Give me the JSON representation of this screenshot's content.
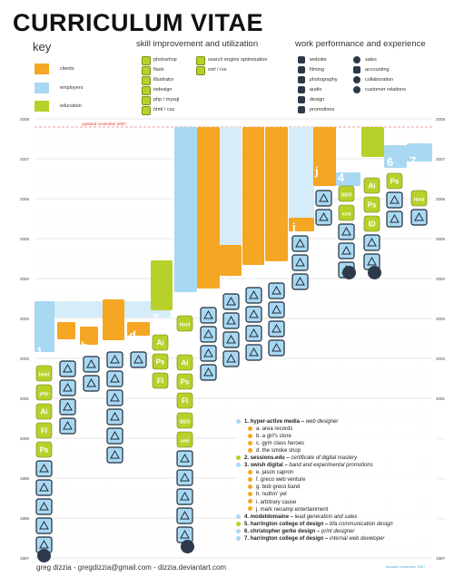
{
  "header": {
    "title": "CURRICULUM VITAE",
    "key_title": "key",
    "skills_title": "skill improvement and utilization",
    "work_title": "work performance and experience"
  },
  "key": [
    {
      "label": "clients",
      "color": "#f5a623"
    },
    {
      "label": "employers",
      "color": "#a9d8f2"
    },
    {
      "label": "education",
      "color": "#b8d02a"
    }
  ],
  "skills": [
    "photoshop",
    "flash",
    "illustrator",
    "indesign",
    "php / mysql",
    "html / css",
    "search engine optimization",
    "xml / rss"
  ],
  "work": [
    "website",
    "filming",
    "photography",
    "audio",
    "design",
    "promotions",
    "sales",
    "accounting",
    "collaboration",
    "customer relations"
  ],
  "chart_data": {
    "type": "timeline",
    "y_ticks": [
      "2008",
      "2007",
      "2006",
      "2005",
      "2004",
      "2003",
      "2002",
      "2001",
      "2000",
      "1999",
      "1998",
      "1997"
    ],
    "updated_label": "updated november 2007",
    "column_labels": [
      "1",
      "a",
      "b",
      "c",
      "d",
      "2",
      "3",
      "e",
      "f",
      "g",
      "h",
      "i",
      "j",
      "4",
      "5",
      "6",
      "7"
    ],
    "badge_labels": [
      "html",
      "php",
      "Ai",
      "Fl",
      "Ps",
      "Ai",
      "Ps",
      "Fl",
      "html",
      "Ai",
      "Ps",
      "Fl",
      "SEO",
      "xml",
      "SEO",
      "xml",
      "Ai",
      "Ps",
      "ID",
      "Ps",
      "html"
    ]
  },
  "legend": {
    "items": [
      {
        "num": "1.",
        "name": "hyper-active media",
        "desc": "web designer",
        "color": "#a9d8f2"
      },
      {
        "num": "a.",
        "name": "area records",
        "color": "#f5a623"
      },
      {
        "num": "b.",
        "name": "a girl's store",
        "color": "#f5a623"
      },
      {
        "num": "c.",
        "name": "gym class heroes",
        "color": "#f5a623"
      },
      {
        "num": "d.",
        "name": "the smoke shop",
        "color": "#f5a623"
      },
      {
        "num": "2.",
        "name": "sessions.edu",
        "desc": "certificate of digital mastery",
        "color": "#b8d02a"
      },
      {
        "num": "3.",
        "name": "swish digital",
        "desc": "band and experimental promotions",
        "color": "#a9d8f2"
      },
      {
        "num": "e.",
        "name": "jason capron",
        "color": "#f5a623"
      },
      {
        "num": "f.",
        "name": "greco web venture",
        "color": "#f5a623"
      },
      {
        "num": "g.",
        "name": "bob greco band",
        "color": "#f5a623"
      },
      {
        "num": "h.",
        "name": "nuthin' yet",
        "color": "#f5a623"
      },
      {
        "num": "i.",
        "name": "arbitrary cause",
        "color": "#f5a623"
      },
      {
        "num": "j.",
        "name": "mark necamp entertainment",
        "color": "#f5a623"
      },
      {
        "num": "4.",
        "name": "modeldomaine",
        "desc": "lead generation and sales",
        "color": "#a9d8f2"
      },
      {
        "num": "5.",
        "name": "harrington college of design",
        "desc": "bfa communication design",
        "color": "#b8d02a"
      },
      {
        "num": "6.",
        "name": "christopher gerke design",
        "desc": "print designer",
        "color": "#a9d8f2"
      },
      {
        "num": "7.",
        "name": "harrington college of design",
        "desc": "internal web developer",
        "color": "#a9d8f2"
      }
    ]
  },
  "footer": {
    "contact": "greg dizzia - gregdizzia@gmail.com - dizzia.deviantart.com",
    "credit": "donated november 2007"
  }
}
